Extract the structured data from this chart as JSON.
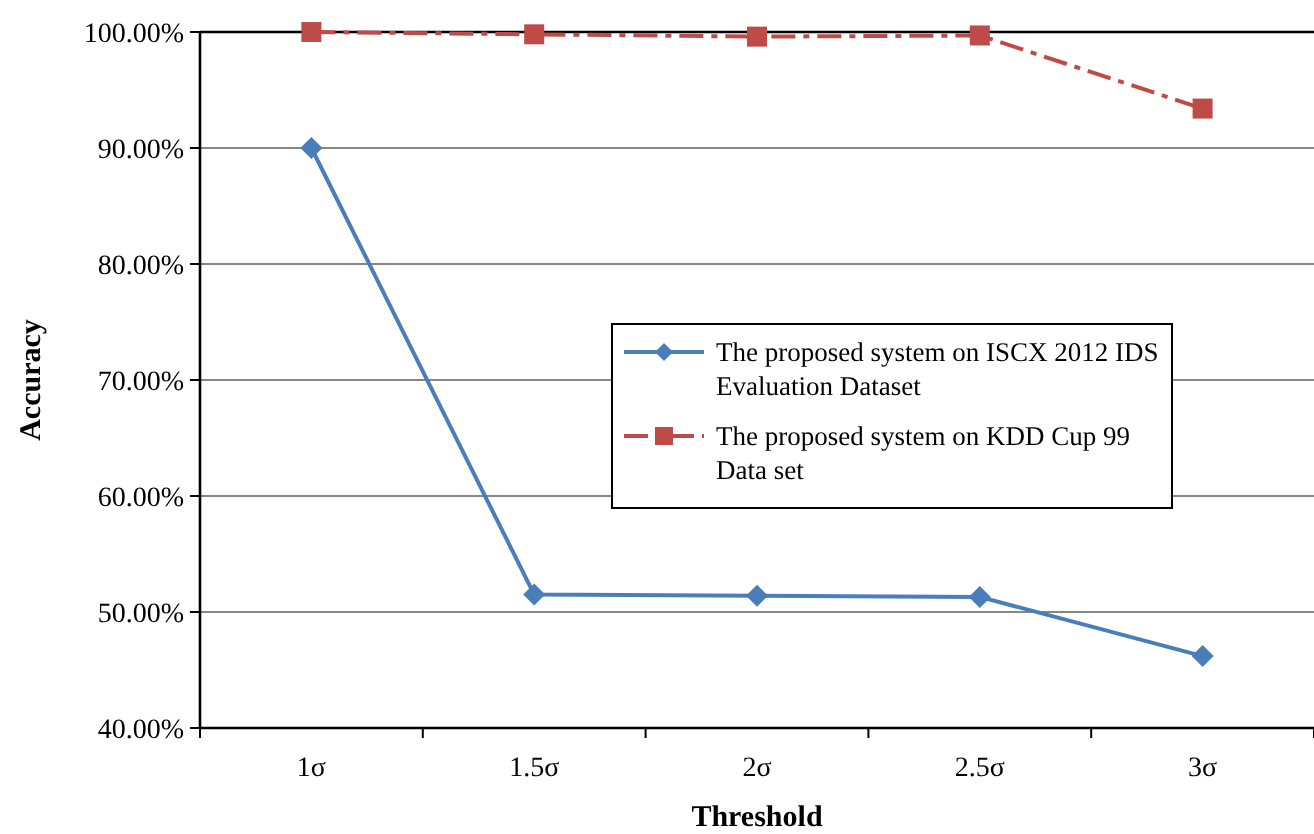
{
  "chart_data": {
    "type": "line",
    "xlabel": "Threshold",
    "ylabel": "Accuracy",
    "categories": [
      "1σ",
      "1.5σ",
      "2σ",
      "2.5σ",
      "3σ"
    ],
    "ylim": [
      40,
      100
    ],
    "yticks": [
      {
        "value": 40,
        "label": "40.00%"
      },
      {
        "value": 50,
        "label": "50.00%"
      },
      {
        "value": 60,
        "label": "60.00%"
      },
      {
        "value": 70,
        "label": "70.00%"
      },
      {
        "value": 80,
        "label": "80.00%"
      },
      {
        "value": 90,
        "label": "90.00%"
      },
      {
        "value": 100,
        "label": "100.00%"
      }
    ],
    "grid": "y",
    "legend": "right",
    "series": [
      {
        "name": "The proposed system on ISCX 2012 IDS Evaluation Dataset",
        "color": "#4a7ebb",
        "marker": "diamond",
        "line_style": "solid",
        "values": [
          90.0,
          51.5,
          51.4,
          51.3,
          46.2
        ]
      },
      {
        "name": "The proposed system on KDD Cup 99 Data set",
        "color": "#be4b48",
        "marker": "square",
        "line_style": "dashdot",
        "values": [
          100.0,
          99.8,
          99.6,
          99.7,
          93.4
        ]
      }
    ]
  }
}
